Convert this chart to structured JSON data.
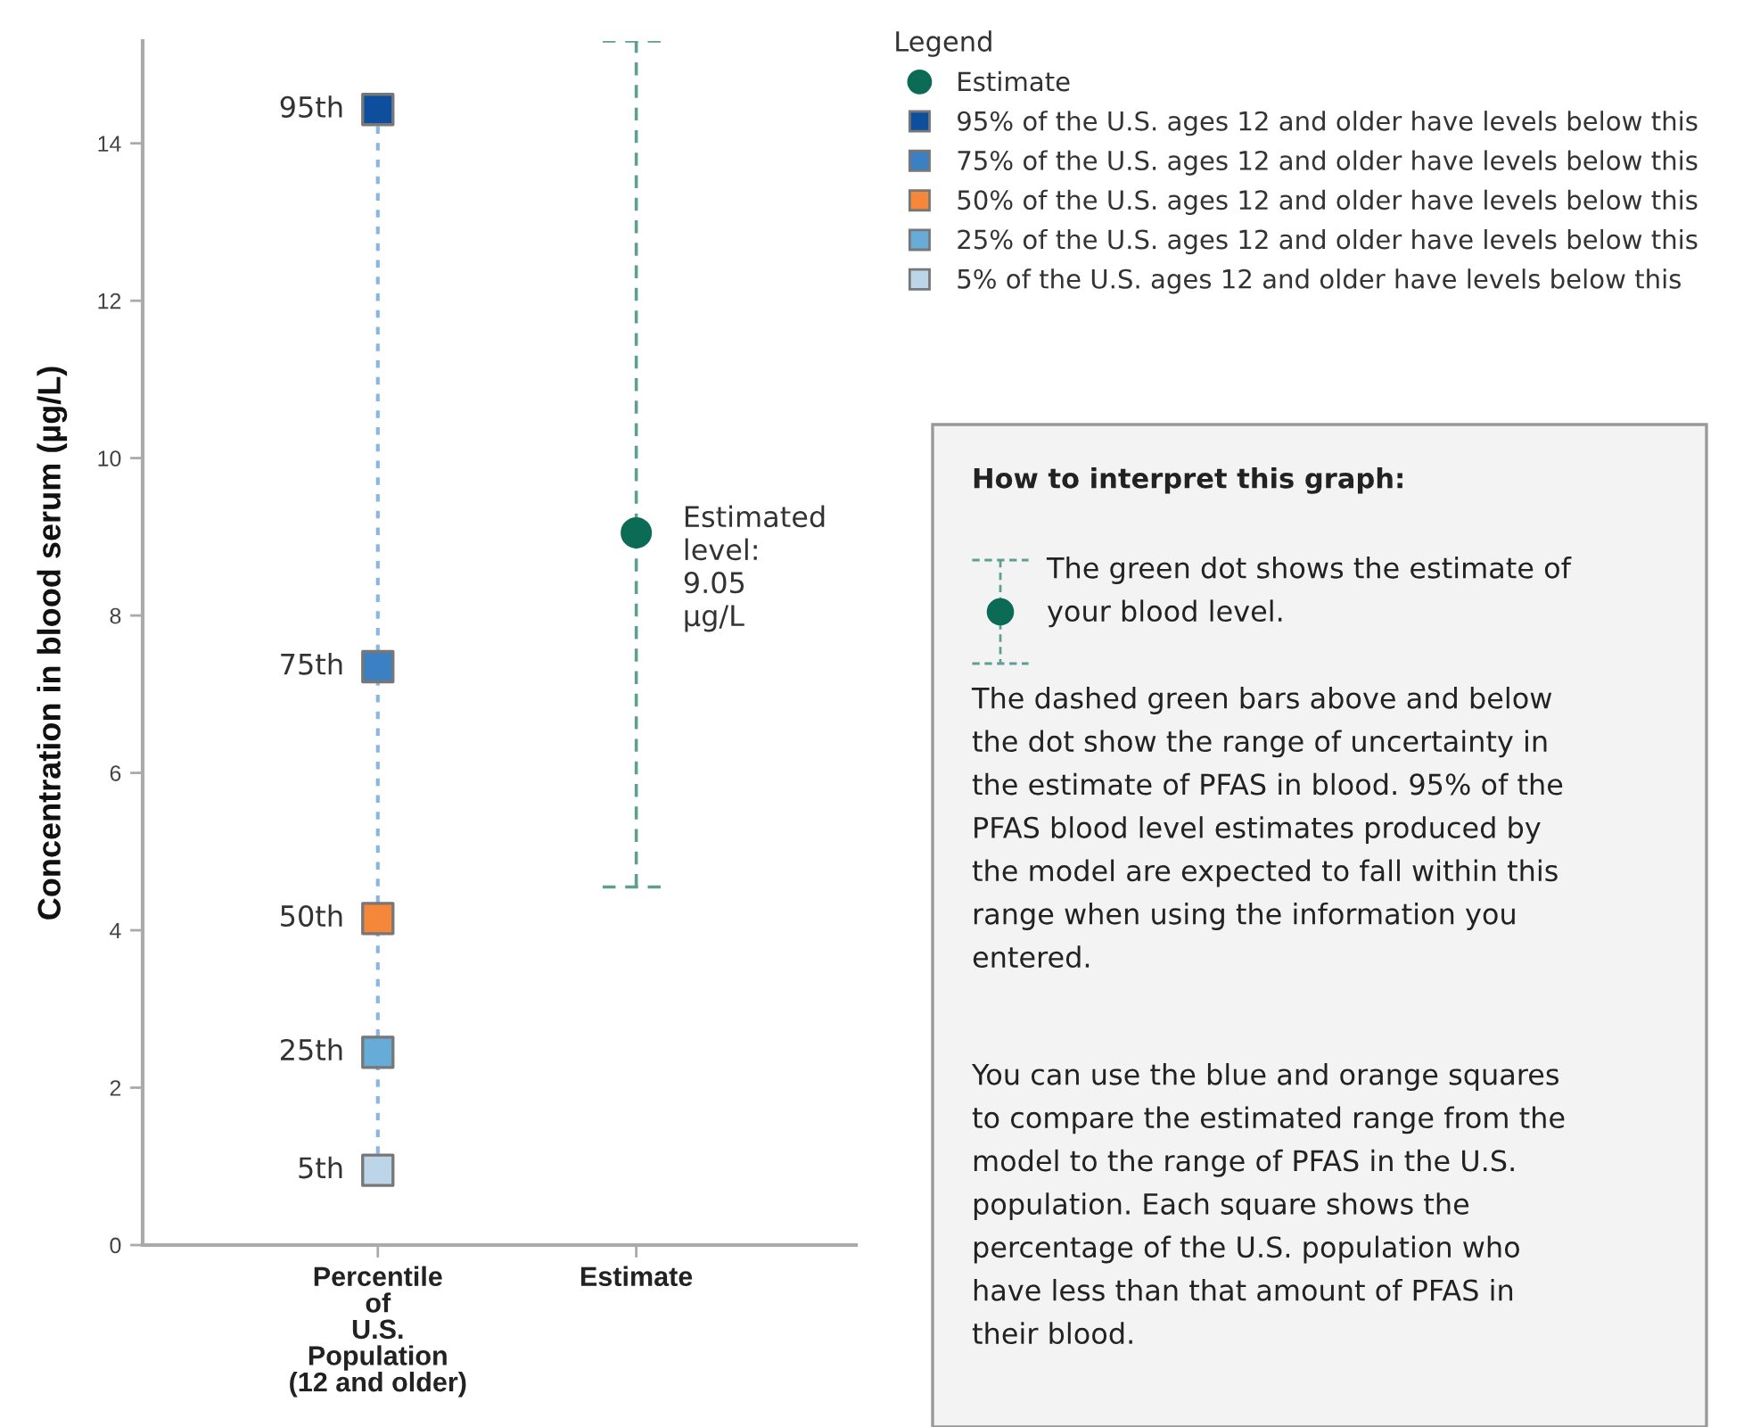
{
  "chart_data": {
    "type": "scatter",
    "ylabel": "Concentration in blood serum (µg/L)",
    "categories": [
      "Percentile\nof\nU.S.\nPopulation\n(12 and older)",
      "Estimate"
    ],
    "ylim": [
      0,
      15.3
    ],
    "yticks": [
      0,
      2,
      4,
      6,
      8,
      10,
      12,
      14
    ],
    "grid": false,
    "legend": "top right",
    "legend_title": "Legend",
    "series": [
      {
        "type": "line",
        "color": "#8ab6df",
        "line_style": "dotted",
        "marker": "none",
        "x": [
          "Percentile\nof\nU.S.\nPopulation\n(12 and older)",
          "Percentile\nof\nU.S.\nPopulation\n(12 and older)"
        ],
        "values": [
          1.16,
          14.25
        ]
      },
      {
        "name": "Estimate",
        "color": "#0b6b55",
        "marker": "circle",
        "values": [
          null,
          9.05
        ],
        "errors": [
          null,
          [
            4.55,
            15.3
          ]
        ],
        "value_labels": [
          null,
          "Estimated\nlevel:\n9.05\nµg/L"
        ]
      },
      {
        "name": "95% of the U.S. ages 12 and older have levels below this",
        "color": "#0d4f9c",
        "marker": "square",
        "values": [
          14.43,
          null
        ]
      },
      {
        "name": "75% of the U.S. ages 12 and older have levels below this",
        "color": "#3a80c2",
        "marker": "square",
        "values": [
          7.35,
          null
        ]
      },
      {
        "name": "50% of the U.S. ages 12 and older have levels below this",
        "color": "#f5873a",
        "marker": "square",
        "values": [
          4.15,
          null
        ]
      },
      {
        "name": "25% of the U.S. ages 12 and older have levels below this",
        "color": "#67acd9",
        "marker": "square",
        "values": [
          2.45,
          null
        ]
      },
      {
        "name": "5% of the U.S. ages 12 and older have levels below this",
        "color": "#bdd5e8",
        "marker": "square",
        "values": [
          0.95,
          null
        ]
      }
    ],
    "annotations": [
      {
        "text": "95th",
        "x": "Percentile\nof\nU.S.\nPopulation\n(12 and older)",
        "y": 14.43
      },
      {
        "text": "75th",
        "x": "Percentile\nof\nU.S.\nPopulation\n(12 and older)",
        "y": 7.35
      },
      {
        "text": "50th",
        "x": "Percentile\nof\nU.S.\nPopulation\n(12 and older)",
        "y": 4.15
      },
      {
        "text": "25th",
        "x": "Percentile\nof\nU.S.\nPopulation\n(12 and older)",
        "y": 2.45
      },
      {
        "text": "5th",
        "x": "Percentile\nof\nU.S.\nPopulation\n(12 and older)",
        "y": 0.95
      },
      "How to interpret this graph:",
      "The green dot shows the estimate of\nyour blood level.",
      "The dashed green bars above and below\nthe dot show the range of uncertainty in\nthe estimate of PFAS in blood. 95% of the\nPFAS blood level estimates produced by\nthe model are expected to fall within this\nrange when using the information you\nentered.",
      "You can use the blue and orange squares\nto compare the estimated range from the\nmodel to the range of PFAS in the U.S.\npopulation. Each square shows the\npercentage of the U.S. population who\nhave less than that amount of PFAS in\ntheir blood."
    ]
  }
}
